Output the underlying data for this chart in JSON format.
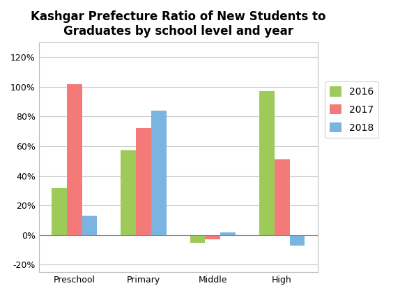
{
  "title": "Kashgar Prefecture Ratio of New Students to\nGraduates by school level and year",
  "categories": [
    "Preschool",
    "Primary",
    "Middle",
    "High"
  ],
  "years": [
    "2016",
    "2017",
    "2018"
  ],
  "values": {
    "2016": [
      0.32,
      0.57,
      -0.05,
      0.97
    ],
    "2017": [
      1.02,
      0.72,
      -0.03,
      0.51
    ],
    "2018": [
      0.13,
      0.84,
      0.02,
      -0.07
    ]
  },
  "colors": {
    "2016": "#9eca5a",
    "2017": "#f47a7a",
    "2018": "#7ab4e0"
  },
  "yticks": [
    -0.2,
    0.0,
    0.2,
    0.4,
    0.6,
    0.8,
    1.0,
    1.2
  ],
  "ylim": [
    -0.25,
    1.3
  ],
  "bar_width": 0.22,
  "title_fontsize": 12,
  "tick_fontsize": 9,
  "background_color": "#ffffff"
}
